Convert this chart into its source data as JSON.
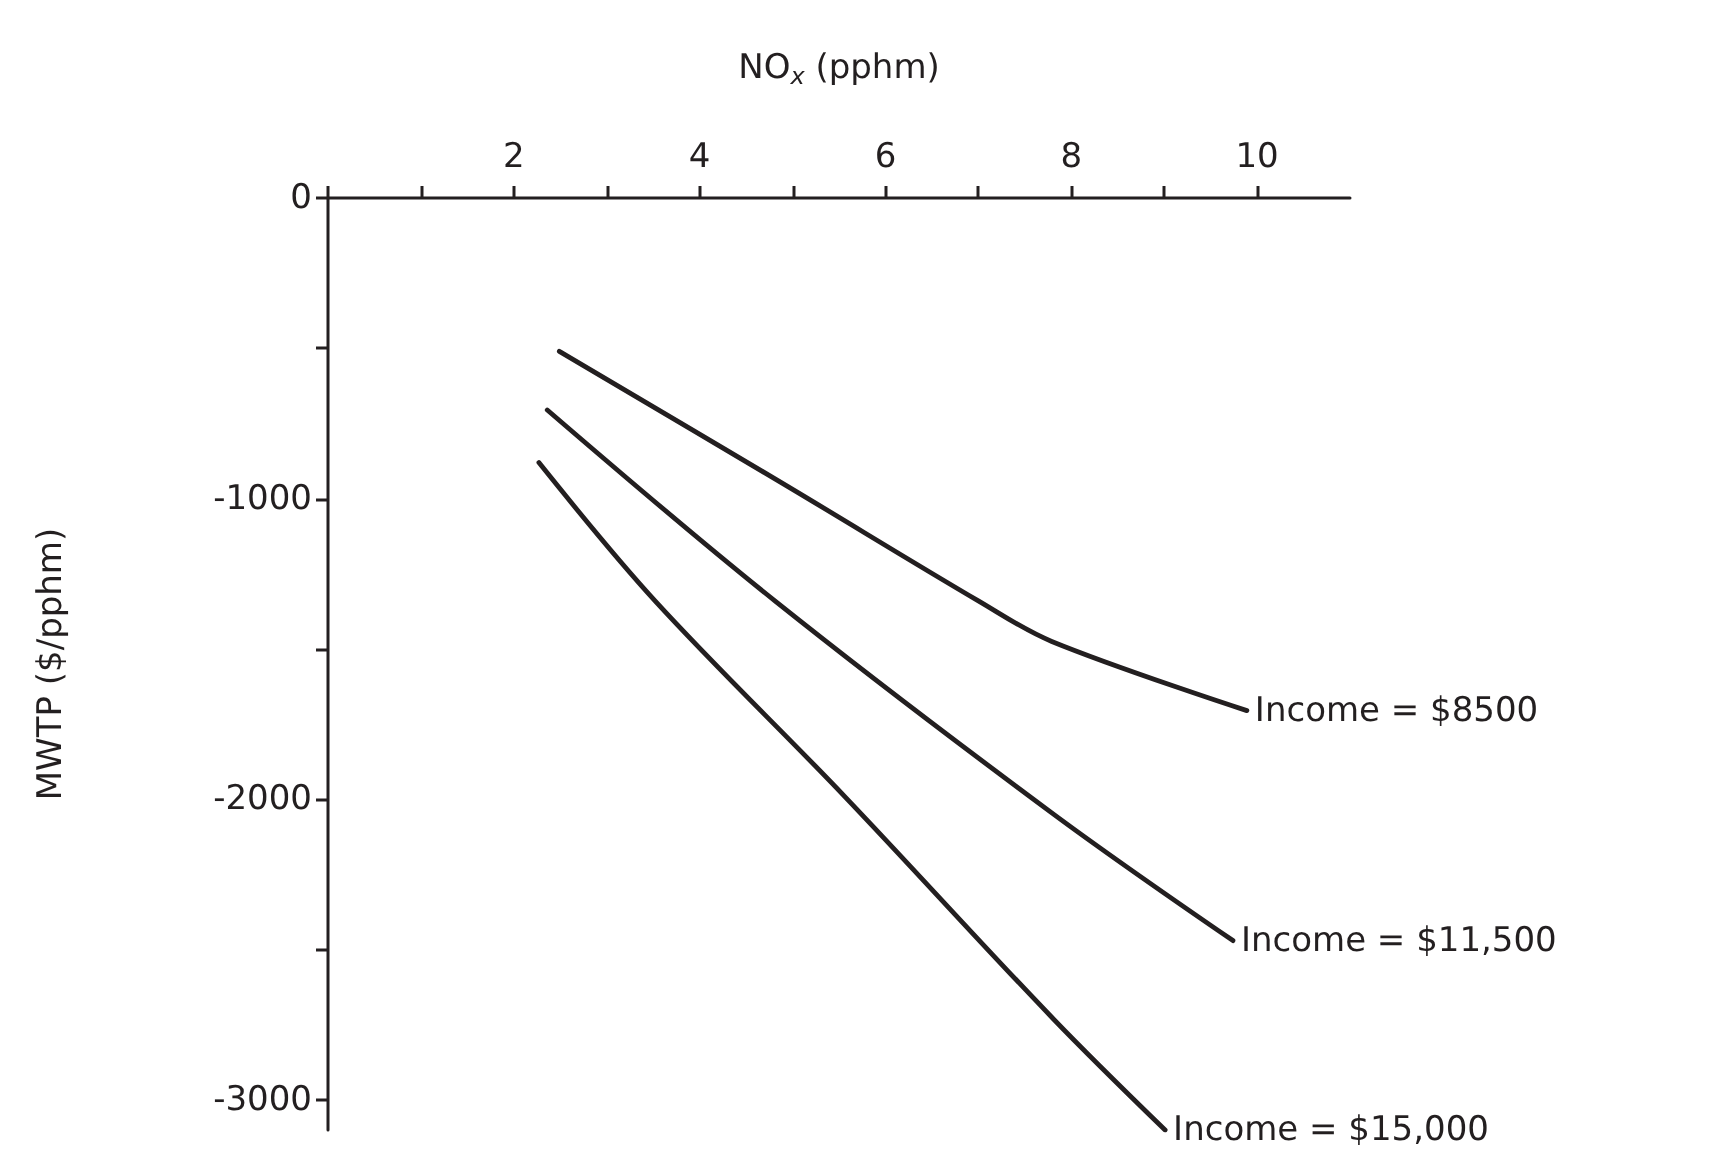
{
  "chart_data": {
    "type": "line",
    "xlabel": "NO$_{x}$ (pphm)",
    "ylabel": "MWTP ($/pphm)",
    "xlim": [
      0,
      11
    ],
    "xticks": [
      {
        "value": 0,
        "label": null
      },
      {
        "value": 1,
        "label": null
      },
      2,
      {
        "value": 3,
        "label": null
      },
      4,
      {
        "value": 5,
        "label": null
      },
      6,
      {
        "value": 7,
        "label": null
      },
      8,
      {
        "value": 9,
        "label": null
      },
      10
    ],
    "ylim": [
      -3100,
      0
    ],
    "yticks": [
      0,
      {
        "value": -500,
        "label": null
      },
      -1000,
      {
        "value": -1500,
        "label": null
      },
      -2000,
      {
        "value": -2500,
        "label": null
      },
      -3000
    ],
    "grid": false,
    "legend": false,
    "marker": "none",
    "line_style": "solid",
    "series": [
      {
        "name": "Income = $8500",
        "color": "#231f20",
        "x": [
          2.49,
          4.87,
          7.0,
          7.79,
          9.89
        ],
        "values": [
          -510,
          -945,
          -1340,
          -1475,
          -1705
        ]
      },
      {
        "name": "Income = $11,500",
        "color": "#231f20",
        "x": [
          2.36,
          4.81,
          7.79,
          9.74
        ],
        "values": [
          -705,
          -1340,
          -2045,
          -2470
        ]
      },
      {
        "name": "Income = $15,000",
        "color": "#231f20",
        "x": [
          2.27,
          3.52,
          5.56,
          7.79,
          9.01
        ],
        "values": [
          -880,
          -1340,
          -1990,
          -2725,
          -3100
        ]
      }
    ]
  }
}
